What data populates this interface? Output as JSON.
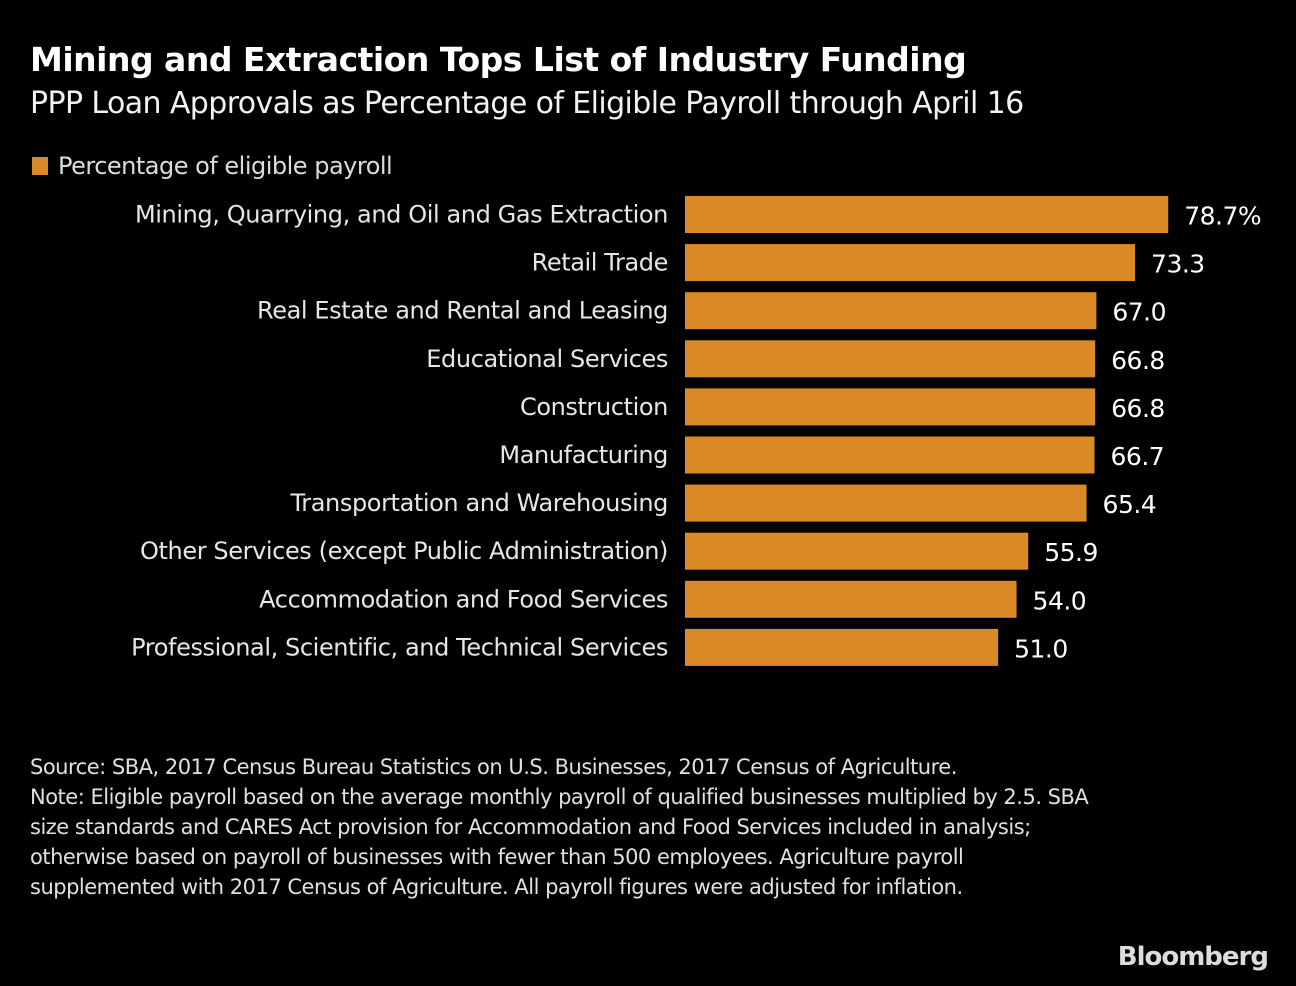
{
  "header": {
    "title": "Mining and Extraction Tops List of Industry Funding",
    "subtitle": "PPP Loan Approvals as Percentage of Eligible Payroll through April 16"
  },
  "legend": {
    "label": "Percentage of eligible payroll",
    "color": "#d98a26"
  },
  "chart_data": {
    "type": "bar",
    "orientation": "horizontal",
    "title": "Mining and Extraction Tops List of Industry Funding",
    "subtitle": "PPP Loan Approvals as Percentage of Eligible Payroll through April 16",
    "xlabel": "",
    "ylabel": "",
    "xlim": [
      0,
      80
    ],
    "grid": false,
    "legend_position": "top-left",
    "categories": [
      "Mining, Quarrying, and Oil and Gas Extraction",
      "Retail Trade",
      "Real Estate and Rental and Leasing",
      "Educational Services",
      "Construction",
      "Manufacturing",
      "Transportation and Warehousing",
      "Other Services (except Public Administration)",
      "Accommodation and Food Services",
      "Professional, Scientific, and Technical Services"
    ],
    "series": [
      {
        "name": "Percentage of eligible payroll",
        "color": "#d98a26",
        "values": [
          78.7,
          73.3,
          67.0,
          66.8,
          66.8,
          66.7,
          65.4,
          55.9,
          54.0,
          51.0
        ]
      }
    ],
    "value_labels": [
      "78.7%",
      "73.3",
      "67.0",
      "66.8",
      "66.8",
      "66.7",
      "65.4",
      "55.9",
      "54.0",
      "51.0"
    ]
  },
  "footer": {
    "source": "Source: SBA, 2017 Census Bureau Statistics on U.S. Businesses, 2017 Census of Agriculture.",
    "note": "Note: Eligible payroll based on the average monthly payroll of qualified businesses multiplied by 2.5. SBA size standards and CARES Act provision for Accommodation and Food Services included in analysis; otherwise based on payroll of businesses with fewer than 500 employees. Agriculture payroll supplemented with 2017 Census of Agriculture. All payroll figures were adjusted for inflation."
  },
  "logo": "Bloomberg"
}
